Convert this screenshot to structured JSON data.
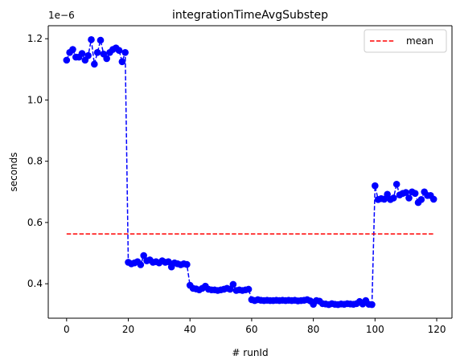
{
  "chart_data": {
    "type": "line",
    "title": "integrationTimeAvgSubstep",
    "xlabel": "# runId",
    "ylabel": "seconds",
    "y_offset_text": "1e−6",
    "y_scale": 1e-06,
    "xlim": [
      -5.95,
      124.95
    ],
    "ylim": [
      0.2875,
      1.2425
    ],
    "xticks": [
      0,
      20,
      40,
      60,
      80,
      100,
      120
    ],
    "xtick_labels": [
      "0",
      "20",
      "40",
      "60",
      "80",
      "100",
      "120"
    ],
    "yticks": [
      0.4,
      0.6,
      0.8,
      1.0,
      1.2
    ],
    "ytick_labels": [
      "0.4",
      "0.6",
      "0.8",
      "1.0",
      "1.2"
    ],
    "grid": false,
    "legend_position": "top-right",
    "series": [
      {
        "style": "points-dashed",
        "color": "#0000ff",
        "x": [
          0,
          1,
          2,
          3,
          4,
          5,
          6,
          7,
          8,
          9,
          10,
          11,
          12,
          13,
          14,
          15,
          16,
          17,
          18,
          19,
          20,
          21,
          22,
          23,
          24,
          25,
          26,
          27,
          28,
          29,
          30,
          31,
          32,
          33,
          34,
          35,
          36,
          37,
          38,
          39,
          40,
          41,
          42,
          43,
          44,
          45,
          46,
          47,
          48,
          49,
          50,
          51,
          52,
          53,
          54,
          55,
          56,
          57,
          58,
          59,
          60,
          61,
          62,
          63,
          64,
          65,
          66,
          67,
          68,
          69,
          70,
          71,
          72,
          73,
          74,
          75,
          76,
          77,
          78,
          79,
          80,
          81,
          82,
          83,
          84,
          85,
          86,
          87,
          88,
          89,
          90,
          91,
          92,
          93,
          94,
          95,
          96,
          97,
          98,
          99,
          100,
          101,
          102,
          103,
          104,
          105,
          106,
          107,
          108,
          109,
          110,
          111,
          112,
          113,
          114,
          115,
          116,
          117,
          118,
          119
        ],
        "y": [
          1.13,
          1.155,
          1.165,
          1.14,
          1.14,
          1.152,
          1.13,
          1.145,
          1.197,
          1.117,
          1.155,
          1.195,
          1.15,
          1.135,
          1.155,
          1.165,
          1.17,
          1.162,
          1.125,
          1.155,
          0.47,
          0.465,
          0.468,
          0.472,
          0.462,
          0.492,
          0.475,
          0.478,
          0.47,
          0.472,
          0.468,
          0.475,
          0.47,
          0.472,
          0.455,
          0.468,
          0.465,
          0.462,
          0.465,
          0.463,
          0.395,
          0.385,
          0.383,
          0.38,
          0.385,
          0.392,
          0.382,
          0.38,
          0.38,
          0.378,
          0.38,
          0.382,
          0.385,
          0.382,
          0.398,
          0.378,
          0.38,
          0.378,
          0.38,
          0.382,
          0.348,
          0.345,
          0.348,
          0.346,
          0.345,
          0.346,
          0.345,
          0.345,
          0.346,
          0.345,
          0.346,
          0.345,
          0.346,
          0.345,
          0.346,
          0.344,
          0.345,
          0.346,
          0.348,
          0.344,
          0.333,
          0.345,
          0.343,
          0.335,
          0.334,
          0.332,
          0.335,
          0.333,
          0.332,
          0.334,
          0.333,
          0.335,
          0.334,
          0.333,
          0.335,
          0.342,
          0.334,
          0.345,
          0.333,
          0.332,
          0.72,
          0.675,
          0.678,
          0.676,
          0.692,
          0.675,
          0.68,
          0.725,
          0.69,
          0.695,
          0.698,
          0.68,
          0.7,
          0.695,
          0.665,
          0.675,
          0.7,
          0.688,
          0.688,
          0.676
        ]
      },
      {
        "name": "mean",
        "style": "dashed",
        "color": "#ff0000",
        "x": [
          0,
          119
        ],
        "y": [
          0.5625,
          0.5625
        ]
      }
    ]
  }
}
